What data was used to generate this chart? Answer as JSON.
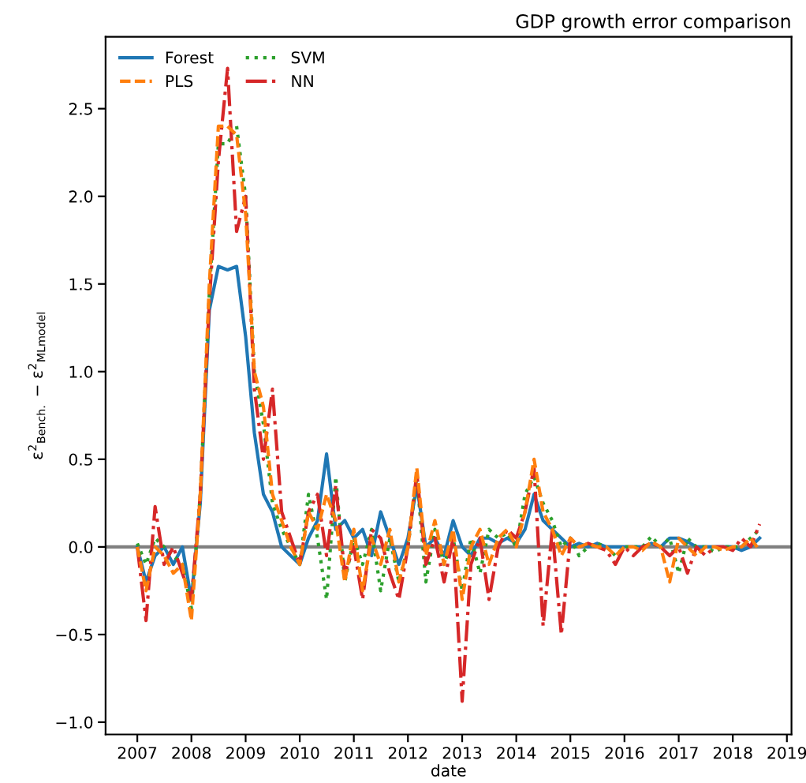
{
  "chart_data": {
    "type": "line",
    "title": "GDP growth error comparison",
    "xlabel": "date",
    "ylabel": "ε$^{2}$$_{Bench.}$ − ε$^{2}$$_{MLmodel}$",
    "x": [
      "2007-01",
      "2007-03",
      "2007-05",
      "2007-07",
      "2007-09",
      "2007-11",
      "2008-01",
      "2008-03",
      "2008-05",
      "2008-07",
      "2008-09",
      "2008-11",
      "2009-01",
      "2009-03",
      "2009-05",
      "2009-07",
      "2009-09",
      "2009-11",
      "2010-01",
      "2010-03",
      "2010-05",
      "2010-07",
      "2010-09",
      "2010-11",
      "2011-01",
      "2011-03",
      "2011-05",
      "2011-07",
      "2011-09",
      "2011-11",
      "2012-01",
      "2012-03",
      "2012-05",
      "2012-07",
      "2012-09",
      "2012-11",
      "2013-01",
      "2013-03",
      "2013-05",
      "2013-07",
      "2013-09",
      "2013-11",
      "2014-01",
      "2014-03",
      "2014-05",
      "2014-07",
      "2014-09",
      "2014-11",
      "2015-01",
      "2015-03",
      "2015-05",
      "2015-07",
      "2015-09",
      "2015-11",
      "2016-01",
      "2016-03",
      "2016-05",
      "2016-07",
      "2016-09",
      "2016-11",
      "2017-01",
      "2017-03",
      "2017-05",
      "2017-07",
      "2017-09",
      "2017-11",
      "2018-01",
      "2018-03",
      "2018-05",
      "2018-07"
    ],
    "series": [
      {
        "name": "Forest",
        "color": "#1f77b4",
        "line_style": "solid",
        "values": [
          0,
          -0.2,
          -0.05,
          0,
          -0.1,
          0,
          -0.3,
          0.25,
          1.35,
          1.6,
          1.58,
          1.6,
          1.2,
          0.65,
          0.3,
          0.2,
          0.0,
          -0.05,
          -0.1,
          0.05,
          0.15,
          0.53,
          0.1,
          0.15,
          0.05,
          0.1,
          -0.05,
          0.2,
          0.05,
          -0.1,
          0.05,
          0.35,
          0.0,
          0.05,
          -0.05,
          0.15,
          0.0,
          -0.05,
          0.05,
          0.05,
          0.02,
          0.05,
          0.02,
          0.1,
          0.3,
          0.15,
          0.1,
          0.05,
          0.0,
          0.02,
          0.0,
          0.02,
          0,
          0,
          0,
          0,
          0,
          0.02,
          0,
          0.05,
          0.05,
          0.03,
          0,
          0,
          0,
          0,
          0,
          -0.02,
          0,
          0.05
        ]
      },
      {
        "name": "PLS",
        "color": "#ff7f0e",
        "line_style": "dashed",
        "values": [
          0,
          -0.25,
          0,
          -0.05,
          -0.15,
          -0.1,
          -0.42,
          0.3,
          1.5,
          2.4,
          2.4,
          2.35,
          1.9,
          1.0,
          0.8,
          0.3,
          0.15,
          0,
          -0.1,
          0.2,
          0.1,
          0.3,
          0.15,
          -0.2,
          0.1,
          -0.25,
          0.05,
          -0.1,
          0.1,
          -0.2,
          0,
          0.45,
          -0.05,
          0.15,
          -0.1,
          0.1,
          -0.3,
          0,
          0.1,
          -0.1,
          0.05,
          0.1,
          0,
          0.2,
          0.5,
          0.2,
          0.1,
          -0.05,
          0.05,
          0,
          0.02,
          0,
          0,
          -0.05,
          0,
          0,
          -0.02,
          0.03,
          0,
          -0.2,
          0.05,
          0,
          -0.05,
          0,
          0,
          -0.02,
          0,
          0,
          0.05,
          -0.02
        ]
      },
      {
        "name": "SVM",
        "color": "#2ca02c",
        "line_style": "dotted",
        "values": [
          0.02,
          -0.1,
          0.05,
          0,
          -0.05,
          -0.1,
          -0.35,
          0.3,
          1.45,
          2.3,
          2.3,
          2.4,
          2.0,
          1.0,
          0.7,
          0.25,
          0.1,
          0,
          -0.1,
          0.3,
          0.05,
          -0.3,
          0.4,
          -0.2,
          0.05,
          -0.1,
          0.1,
          -0.25,
          0.05,
          -0.2,
          0,
          0.4,
          -0.2,
          0.1,
          -0.1,
          0.05,
          -0.25,
          0.05,
          -0.15,
          0.1,
          0.05,
          0.08,
          0,
          0.3,
          0.4,
          0.25,
          0.15,
          0,
          0.05,
          -0.05,
          0,
          0.02,
          0,
          -0.05,
          0,
          0,
          0,
          0.06,
          0,
          0.05,
          -0.15,
          0.05,
          0,
          0,
          -0.03,
          0,
          0,
          0,
          0.05,
          0.1
        ]
      },
      {
        "name": "NN",
        "color": "#d62728",
        "line_style": "dashdot",
        "values": [
          0,
          -0.42,
          0.23,
          -0.1,
          0,
          -0.15,
          -0.3,
          0.3,
          1.4,
          2.2,
          2.73,
          1.8,
          2.0,
          0.9,
          0.5,
          0.9,
          0.2,
          0.05,
          -0.1,
          0.2,
          0.3,
          -0.05,
          0.35,
          -0.15,
          0,
          -0.3,
          0.1,
          0.05,
          -0.15,
          -0.3,
          0,
          0.42,
          -0.1,
          0.05,
          -0.2,
          0.05,
          -0.88,
          -0.1,
          0.05,
          -0.3,
          0,
          0.1,
          0.05,
          0.2,
          0.45,
          -0.45,
          0.1,
          -0.5,
          0.05,
          0,
          0.02,
          0,
          -0.02,
          -0.1,
          0,
          -0.05,
          0,
          0.02,
          0,
          -0.05,
          0,
          -0.15,
          0,
          -0.05,
          0,
          0,
          -0.02,
          0.05,
          0,
          0.13
        ]
      }
    ],
    "xlim": [
      "2006-06",
      "2019-02"
    ],
    "xticks": [
      "2007",
      "2008",
      "2009",
      "2010",
      "2011",
      "2012",
      "2013",
      "2014",
      "2015",
      "2016",
      "2017",
      "2018",
      "2019"
    ],
    "ylim": [
      -1.07,
      2.91
    ],
    "yticks": [
      {
        "value": -1,
        "label": "−1.0"
      },
      {
        "value": -0.5,
        "label": "−0.5"
      },
      {
        "value": 0,
        "label": "0.0"
      },
      {
        "value": 0.5,
        "label": "0.5"
      },
      {
        "value": 1,
        "label": "1.0"
      },
      {
        "value": 1.5,
        "label": "1.5"
      },
      {
        "value": 2,
        "label": "2.0"
      },
      {
        "value": 2.5,
        "label": "2.5"
      }
    ],
    "ref_lines": [
      {
        "axis": "y",
        "value": 0,
        "color": "#808080",
        "line_style": "solid"
      }
    ],
    "legend": "top left",
    "grid": false,
    "marker": "none"
  }
}
